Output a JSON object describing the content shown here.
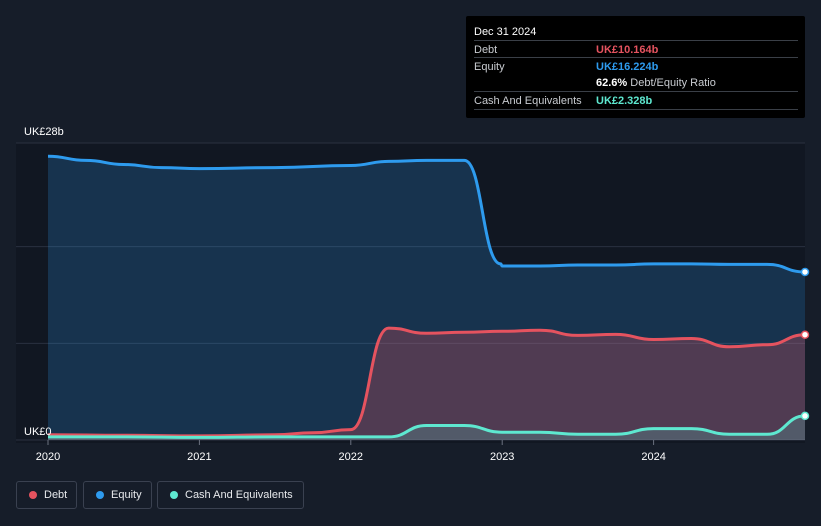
{
  "tooltip": {
    "date": "Dec 31 2024",
    "debt_label": "Debt",
    "debt_value": "UK£10.164b",
    "equity_label": "Equity",
    "equity_value": "UK£16.224b",
    "ratio_value": "62.6%",
    "ratio_label": "Debt/Equity Ratio",
    "cash_label": "Cash And Equivalents",
    "cash_value": "UK£2.328b"
  },
  "legend": {
    "debt": "Debt",
    "equity": "Equity",
    "cash": "Cash And Equivalents"
  },
  "colors": {
    "debt": "#e5535f",
    "equity": "#2e9bee",
    "cash": "#5ee8d0",
    "background": "#161d29"
  },
  "chart_data": {
    "type": "area",
    "title": "",
    "xlabel": "",
    "ylabel": "",
    "y_axis_labels": [
      "UK£28b",
      "UK£0"
    ],
    "ylim": [
      0,
      28
    ],
    "y_unit": "UK£b",
    "x_tick_labels": [
      "2020",
      "2021",
      "2022",
      "2023",
      "2024"
    ],
    "x_ticks": [
      2020.0,
      2021.0,
      2022.0,
      2023.0,
      2024.0
    ],
    "xlim": [
      2019.8,
      2025.0
    ],
    "legend_position": "bottom-left",
    "grid": true,
    "series": [
      {
        "name": "Debt",
        "x": [
          2020.0,
          2020.5,
          2021.0,
          2021.5,
          2021.75,
          2022.0,
          2022.25,
          2022.5,
          2022.75,
          2023.0,
          2023.25,
          2023.5,
          2023.75,
          2024.0,
          2024.25,
          2024.5,
          2024.75,
          2025.0
        ],
        "values": [
          0.5,
          0.45,
          0.4,
          0.5,
          0.7,
          1.0,
          10.8,
          10.3,
          10.4,
          10.5,
          10.6,
          10.1,
          10.2,
          9.7,
          9.8,
          9.0,
          9.2,
          10.164
        ]
      },
      {
        "name": "Equity",
        "x": [
          2020.0,
          2020.25,
          2020.5,
          2020.75,
          2021.0,
          2021.5,
          2022.0,
          2022.25,
          2022.5,
          2022.75,
          2022.99,
          2023.0,
          2023.25,
          2023.5,
          2023.75,
          2024.0,
          2024.25,
          2024.5,
          2024.75,
          2025.0
        ],
        "values": [
          27.4,
          27.0,
          26.6,
          26.3,
          26.2,
          26.3,
          26.5,
          26.9,
          27.0,
          27.0,
          17.0,
          16.8,
          16.8,
          16.9,
          16.9,
          17.0,
          17.0,
          16.95,
          16.95,
          16.224
        ]
      },
      {
        "name": "Cash And Equivalents",
        "x": [
          2020.0,
          2020.5,
          2021.0,
          2021.5,
          2022.0,
          2022.25,
          2022.5,
          2022.75,
          2023.0,
          2023.25,
          2023.5,
          2023.75,
          2024.0,
          2024.25,
          2024.5,
          2024.75,
          2025.0
        ],
        "values": [
          0.3,
          0.3,
          0.25,
          0.3,
          0.3,
          0.3,
          1.4,
          1.4,
          0.75,
          0.75,
          0.55,
          0.55,
          1.1,
          1.1,
          0.55,
          0.55,
          2.328
        ]
      }
    ]
  }
}
